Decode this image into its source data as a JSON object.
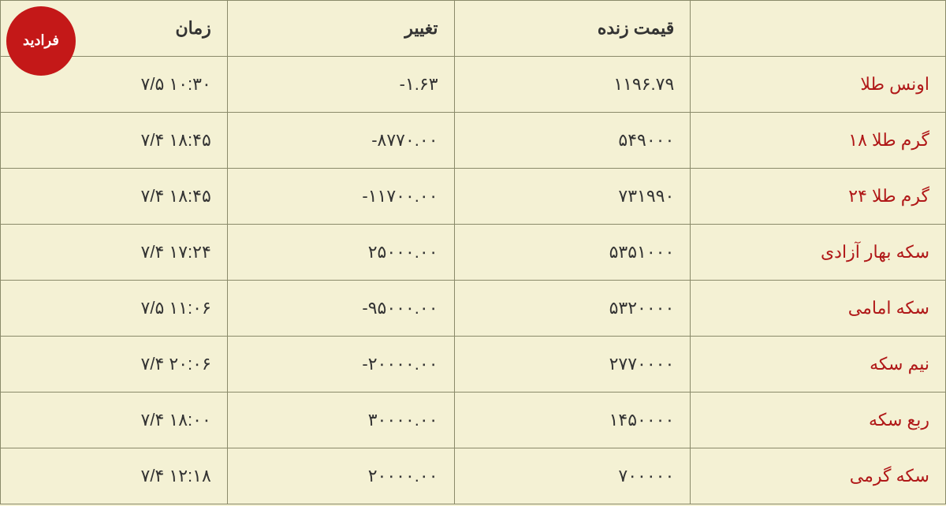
{
  "logo": {
    "text": "فرادید",
    "background_color": "#c41818",
    "text_color": "#ffffff"
  },
  "table": {
    "background_color": "#f4f1d4",
    "border_color": "#8a8a6a",
    "header_text_color": "#333333",
    "name_cell_color": "#b01818",
    "value_cell_color": "#333333",
    "font_size": 22,
    "columns": [
      {
        "key": "name",
        "label": ""
      },
      {
        "key": "price",
        "label": "قیمت زنده"
      },
      {
        "key": "change",
        "label": "تغییر"
      },
      {
        "key": "time",
        "label": "زمان"
      }
    ],
    "rows": [
      {
        "name": "اونس طلا",
        "price": "۱۱۹۶.۷۹",
        "change": "۱.۶۳-",
        "time": "۱۰:۳۰ ۷/۵"
      },
      {
        "name": "گرم طلا ۱۸",
        "price": "۵۴۹۰۰۰",
        "change": "۸۷۷۰.۰۰-",
        "time": "۱۸:۴۵ ۷/۴"
      },
      {
        "name": "گرم طلا ۲۴",
        "price": "۷۳۱۹۹۰",
        "change": "۱۱۷۰۰.۰۰-",
        "time": "۱۸:۴۵ ۷/۴"
      },
      {
        "name": "سکه بهار آزادی",
        "price": "۵۳۵۱۰۰۰",
        "change": "۲۵۰۰۰.۰۰",
        "time": "۱۷:۲۴ ۷/۴"
      },
      {
        "name": "سکه امامی",
        "price": "۵۳۲۰۰۰۰",
        "change": "۹۵۰۰۰.۰۰-",
        "time": "۱۱:۰۶ ۷/۵"
      },
      {
        "name": "نیم سکه",
        "price": "۲۷۷۰۰۰۰",
        "change": "۲۰۰۰۰.۰۰-",
        "time": "۲۰:۰۶ ۷/۴"
      },
      {
        "name": "ربع سکه",
        "price": "۱۴۵۰۰۰۰",
        "change": "۳۰۰۰۰.۰۰",
        "time": "۱۸:۰۰ ۷/۴"
      },
      {
        "name": "سکه گرمی",
        "price": "۷۰۰۰۰۰",
        "change": "۲۰۰۰۰.۰۰",
        "time": "۱۲:۱۸ ۷/۴"
      }
    ]
  }
}
